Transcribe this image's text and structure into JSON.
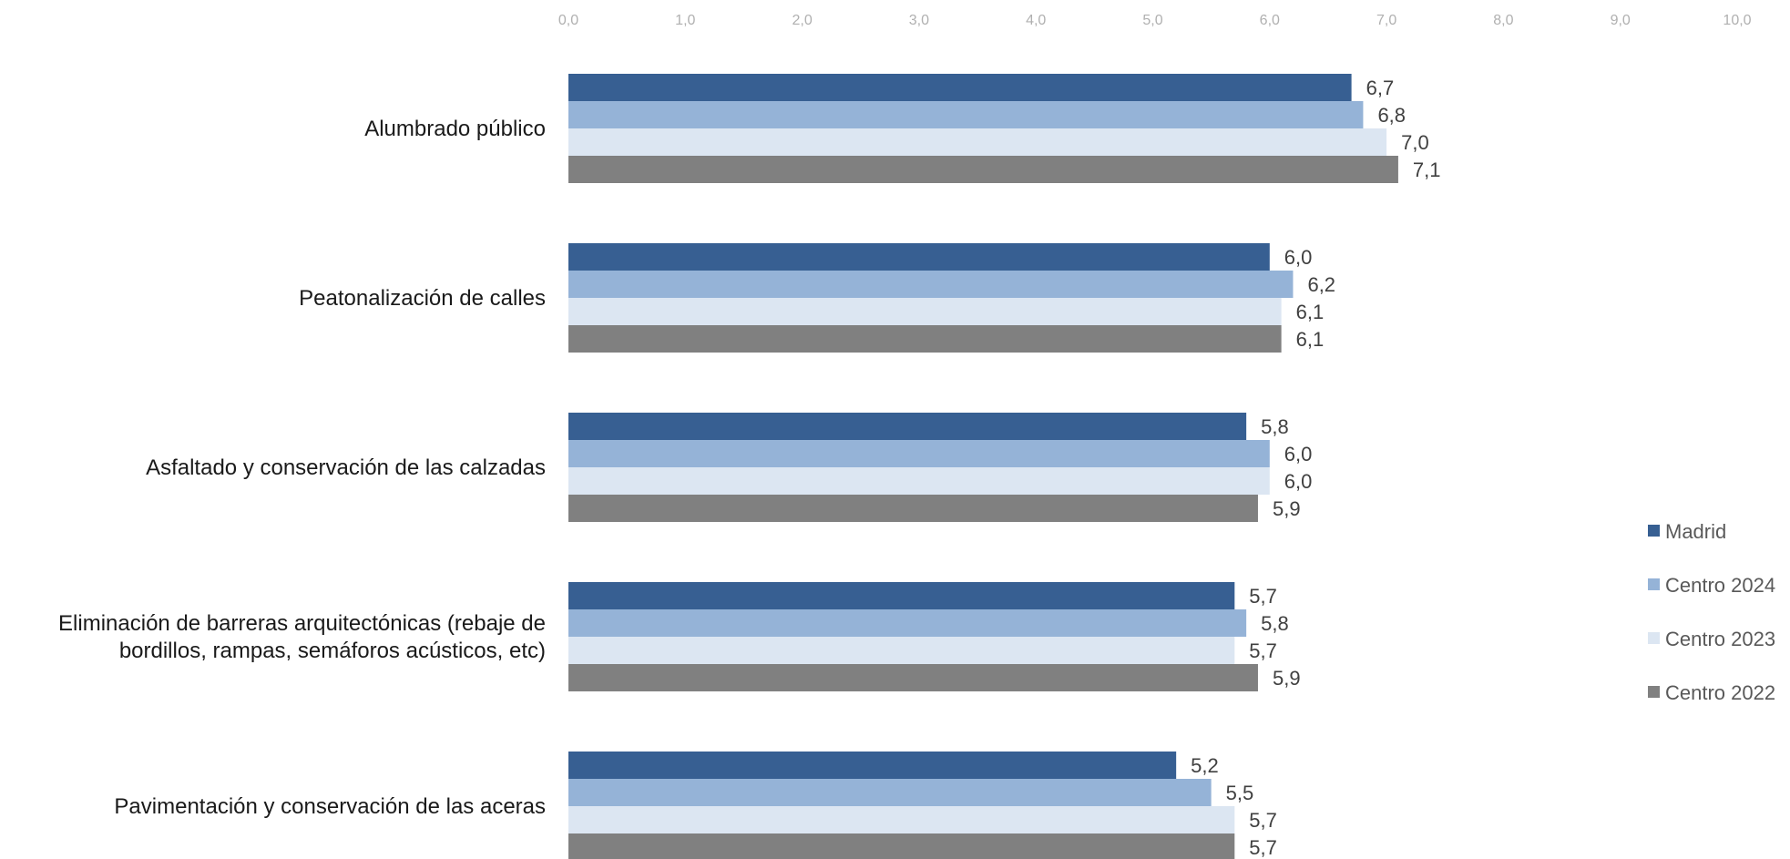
{
  "chart_data": {
    "type": "bar",
    "orientation": "horizontal",
    "xlim": [
      0,
      10
    ],
    "ticks": [
      "0,0",
      "1,0",
      "2,0",
      "3,0",
      "4,0",
      "5,0",
      "6,0",
      "7,0",
      "8,0",
      "9,0",
      "10,0"
    ],
    "categories": [
      [
        "Alumbrado público"
      ],
      [
        "Peatonalización de calles"
      ],
      [
        "Asfaltado y conservación de las calzadas"
      ],
      [
        "Eliminación de barreras arquitectónicas  (rebaje de",
        "bordillos, rampas, semáforos  acústicos, etc)"
      ],
      [
        "Pavimentación y conservación de las aceras"
      ]
    ],
    "series": [
      {
        "name": "Madrid",
        "color": "#375F92",
        "values": [
          6.7,
          6.0,
          5.8,
          5.7,
          5.2
        ],
        "labels": [
          "6,7",
          "6,0",
          "5,8",
          "5,7",
          "5,2"
        ]
      },
      {
        "name": "Centro 2024",
        "color": "#95B3D7",
        "values": [
          6.8,
          6.2,
          6.0,
          5.8,
          5.5
        ],
        "labels": [
          "6,8",
          "6,2",
          "6,0",
          "5,8",
          "5,5"
        ]
      },
      {
        "name": "Centro 2023",
        "color": "#DCE6F2",
        "values": [
          7.0,
          6.1,
          6.0,
          5.7,
          5.7
        ],
        "labels": [
          "7,0",
          "6,1",
          "6,0",
          "5,7",
          "5,7"
        ]
      },
      {
        "name": "Centro 2022",
        "color": "#808080",
        "values": [
          7.1,
          6.1,
          5.9,
          5.9,
          5.7
        ],
        "labels": [
          "7,1",
          "6,1",
          "5,9",
          "5,9",
          "5,7"
        ]
      }
    ],
    "legend_position": "right",
    "grid": false
  }
}
